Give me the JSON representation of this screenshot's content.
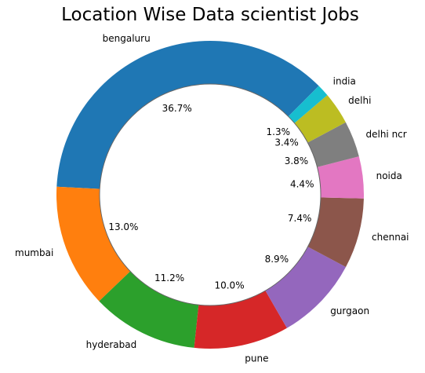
{
  "chart_data": {
    "type": "pie",
    "title": "Location Wise Data scientist Jobs",
    "start_angle_deg": 45,
    "counterclockwise": true,
    "slices": [
      {
        "label": "bengaluru",
        "pct_text": "36.7%",
        "value": 36.7,
        "color": "#1f77b4"
      },
      {
        "label": "mumbai",
        "pct_text": "13.0%",
        "value": 13.0,
        "color": "#ff7f0e"
      },
      {
        "label": "hyderabad",
        "pct_text": "11.2%",
        "value": 11.2,
        "color": "#2ca02c"
      },
      {
        "label": "pune",
        "pct_text": "10.0%",
        "value": 10.0,
        "color": "#d62728"
      },
      {
        "label": "gurgaon",
        "pct_text": "8.9%",
        "value": 8.9,
        "color": "#9467bd"
      },
      {
        "label": "chennai",
        "pct_text": "7.4%",
        "value": 7.4,
        "color": "#8c564b"
      },
      {
        "label": "noida",
        "pct_text": "4.4%",
        "value": 4.4,
        "color": "#e377c2"
      },
      {
        "label": "delhi ncr",
        "pct_text": "3.8%",
        "value": 3.8,
        "color": "#7f7f7f"
      },
      {
        "label": "delhi",
        "pct_text": "3.4%",
        "value": 3.4,
        "color": "#bcbd22"
      },
      {
        "label": "india",
        "pct_text": "1.3%",
        "value": 1.3,
        "color": "#17becf"
      }
    ]
  }
}
